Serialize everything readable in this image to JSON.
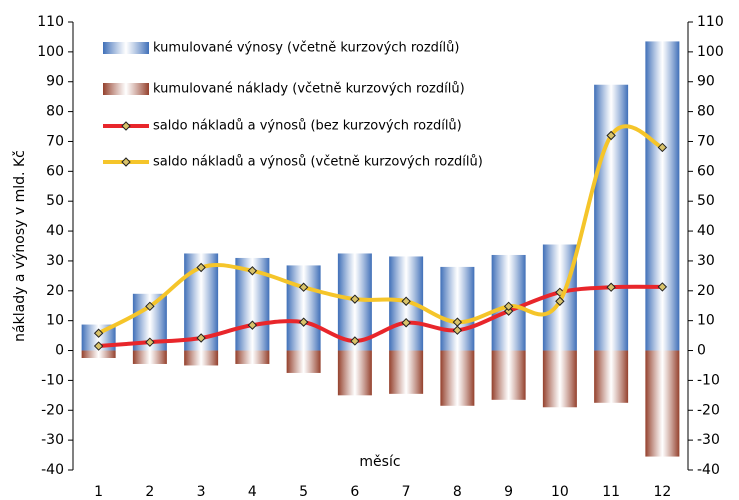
{
  "chart_data": {
    "type": "bar",
    "categories": [
      "1",
      "2",
      "3",
      "4",
      "5",
      "6",
      "7",
      "8",
      "9",
      "10",
      "11",
      "12"
    ],
    "series": [
      {
        "name": "kumulované výnosy (včetně kurzových rozdílů)",
        "type": "bar",
        "color": "#3f6fb8",
        "values": [
          8.7,
          19,
          32.5,
          31,
          28.5,
          32.5,
          31.5,
          28,
          32,
          35.5,
          89,
          103.5
        ]
      },
      {
        "name": "kumulované náklady (včetně kurzových rozdílů)",
        "type": "bar",
        "color": "#94402c",
        "values": [
          -2.5,
          -4.5,
          -5,
          -4.5,
          -7.5,
          -15,
          -14.5,
          -18.5,
          -16.5,
          -19,
          -17.5,
          -35.5
        ]
      },
      {
        "name": "saldo nákladů a výnosů (bez kurzových rozdílů)",
        "type": "line",
        "color": "#e8262b",
        "values": [
          1.5,
          2.8,
          4.2,
          8.5,
          9.5,
          3.2,
          9.3,
          6.8,
          13.2,
          19.5,
          21.2,
          21.3
        ]
      },
      {
        "name": "saldo nákladů a výnosů (včetně kurzových rozdílů)",
        "type": "line",
        "color": "#f5c52a",
        "values": [
          5.8,
          14.8,
          27.8,
          26.7,
          21.2,
          17.2,
          16.5,
          9.5,
          14.8,
          16.5,
          72,
          68
        ]
      }
    ],
    "ylabel": "náklady a výnosy v mld. Kč",
    "xlabel": "měsíc",
    "ylim": [
      -40,
      110
    ],
    "yticks": [
      -40,
      -30,
      -20,
      -10,
      0,
      10,
      20,
      30,
      40,
      50,
      60,
      70,
      80,
      90,
      100,
      110
    ],
    "y2lim": [
      -40,
      110
    ],
    "y2ticks": [
      -40,
      -30,
      -20,
      -10,
      0,
      10,
      20,
      30,
      40,
      50,
      60,
      70,
      80,
      90,
      100,
      110
    ],
    "legend": "upper left",
    "grid": false,
    "smooth": true
  }
}
